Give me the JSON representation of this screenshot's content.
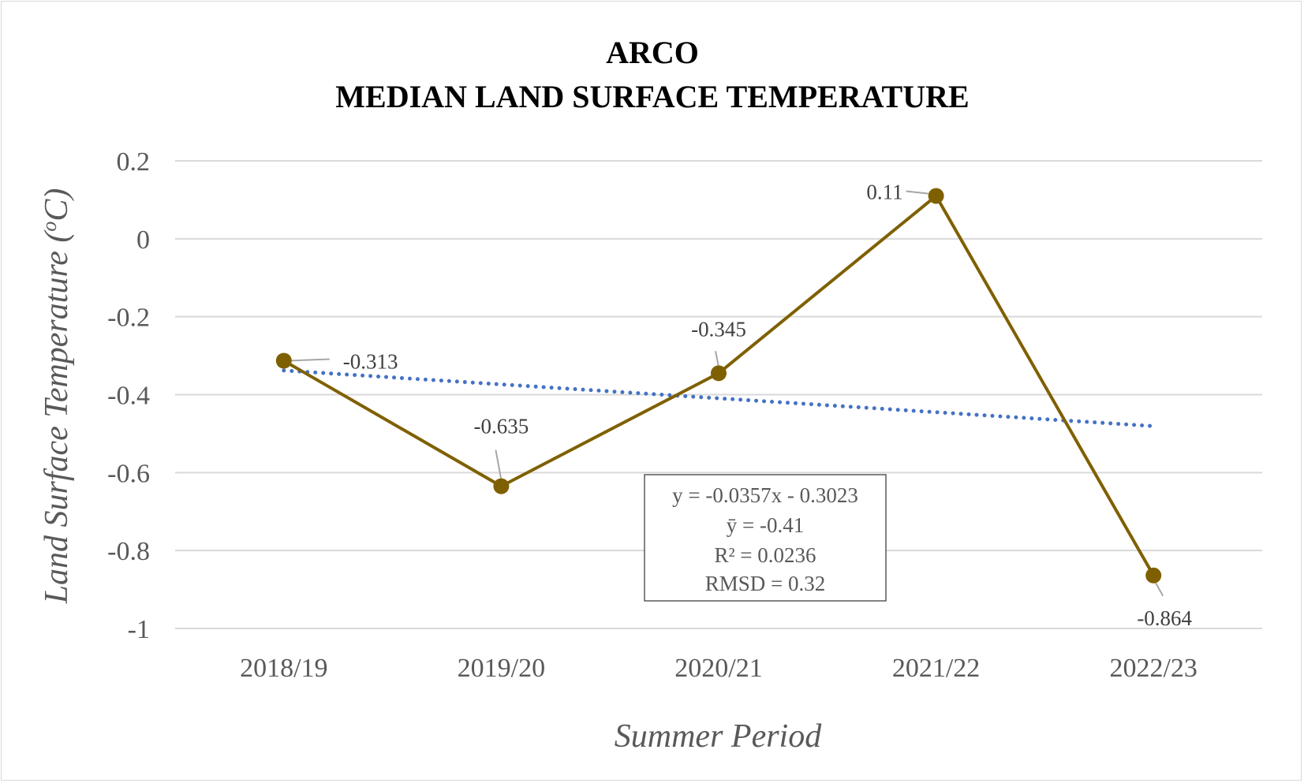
{
  "chart_data": {
    "type": "line",
    "title": "ARCO",
    "subtitle": "MEDIAN LAND SURFACE TEMPERATURE",
    "xlabel": "Summer Period",
    "ylabel": "Land Surface Temperature (",
    "ylabel_unit_sup": "o",
    "ylabel_unit": "C)",
    "categories": [
      "2018/19",
      "2019/20",
      "2020/21",
      "2021/22",
      "2022/23"
    ],
    "series": [
      {
        "values": [
          -0.313,
          -0.635,
          -0.345,
          0.11,
          -0.864
        ],
        "color": "#7f6000"
      }
    ],
    "data_labels": [
      "-0.313",
      "-0.635",
      "-0.345",
      "0.11",
      "-0.864"
    ],
    "trendline": {
      "type": "linear",
      "slope": -0.0357,
      "intercept": -0.3023,
      "color": "#4472c4",
      "style": "dotted"
    },
    "stats_box": [
      "y = -0.0357x - 0.3023",
      "ȳ = -0.41",
      "R² = 0.0236",
      "RMSD = 0.32"
    ],
    "y_ticks": [
      "0.2",
      "0",
      "-0.2",
      "-0.4",
      "-0.6",
      "-0.8",
      "-1"
    ],
    "ylim": [
      -1,
      0.2
    ],
    "grid": true,
    "legend": "none"
  }
}
